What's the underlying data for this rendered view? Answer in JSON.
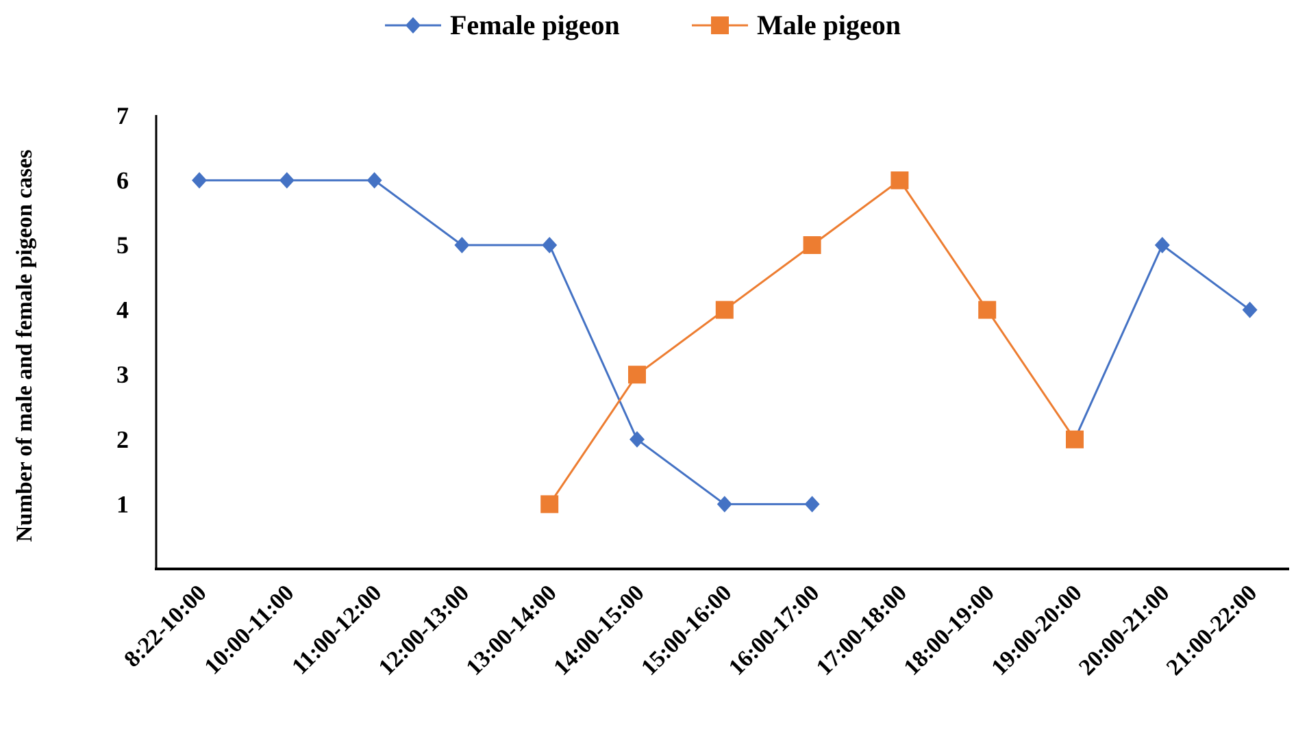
{
  "chart_data": {
    "type": "line",
    "title": "",
    "xlabel": "",
    "ylabel": "Number of male and female pigeon cases",
    "ylim": [
      0,
      7
    ],
    "yticks": [
      1,
      2,
      3,
      4,
      5,
      6,
      7
    ],
    "grid": false,
    "legend_position": "top-center",
    "categories": [
      "8:22-10:00",
      "10:00-11:00",
      "11:00-12:00",
      "12:00-13:00",
      "13:00-14:00",
      "14:00-15:00",
      "15:00-16:00",
      "16:00-17:00",
      "17:00-18:00",
      "18:00-19:00",
      "19:00-20:00",
      "20:00-21:00",
      "21:00-22:00"
    ],
    "series": [
      {
        "name": "Female pigeon",
        "color": "#4472C4",
        "marker": "diamond",
        "values": [
          6,
          6,
          6,
          5,
          5,
          2,
          1,
          1,
          null,
          null,
          2,
          5,
          4
        ]
      },
      {
        "name": "Male pigeon",
        "color": "#ED7D31",
        "marker": "square",
        "values": [
          null,
          null,
          null,
          null,
          1,
          3,
          4,
          5,
          6,
          4,
          2,
          null,
          null
        ]
      }
    ]
  }
}
